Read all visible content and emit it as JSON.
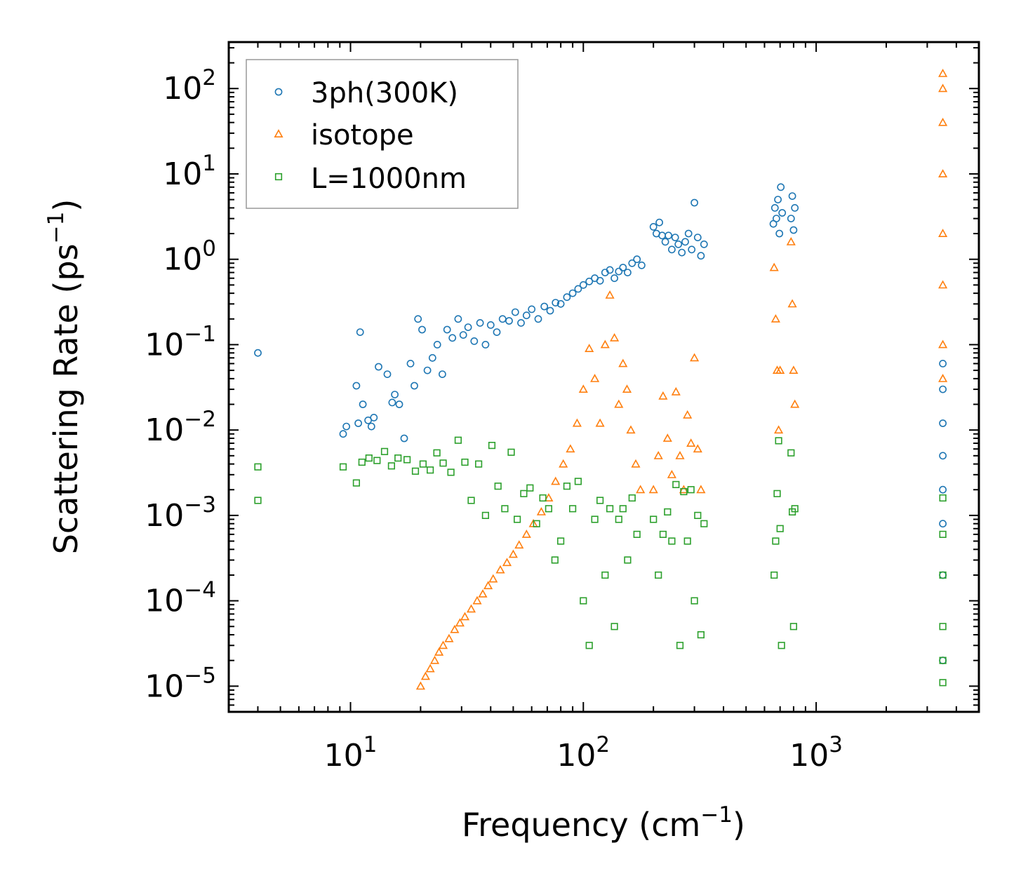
{
  "chart_data": {
    "type": "scatter",
    "title": "",
    "xlabel": "Frequency (cm",
    "xlabel_sup": "−1",
    "xlabel_suffix": ")",
    "ylabel": "Scattering Rate (ps",
    "ylabel_sup": "−1",
    "ylabel_suffix": ")",
    "xscale": "log",
    "yscale": "log",
    "xlim": [
      3.0,
      5000
    ],
    "ylim": [
      5e-06,
      350
    ],
    "grid": false,
    "legend_position": "top-left",
    "x_ticks": [
      {
        "value": 10,
        "base": "10",
        "exp": "1"
      },
      {
        "value": 100,
        "base": "10",
        "exp": "2"
      },
      {
        "value": 1000,
        "base": "10",
        "exp": "3"
      }
    ],
    "y_ticks": [
      {
        "value": 1e-05,
        "base": "10",
        "exp": "−5"
      },
      {
        "value": 0.0001,
        "base": "10",
        "exp": "−4"
      },
      {
        "value": 0.001,
        "base": "10",
        "exp": "−3"
      },
      {
        "value": 0.01,
        "base": "10",
        "exp": "−2"
      },
      {
        "value": 0.1,
        "base": "10",
        "exp": "−1"
      },
      {
        "value": 1,
        "base": "10",
        "exp": "0"
      },
      {
        "value": 10,
        "base": "10",
        "exp": "1"
      },
      {
        "value": 100,
        "base": "10",
        "exp": "2"
      }
    ],
    "series": [
      {
        "name": "3ph(300K)",
        "marker": "circle",
        "color": "#1f77b4",
        "x": [
          4.0,
          9.3,
          9.6,
          10.6,
          10.8,
          11.0,
          11.3,
          11.9,
          12.3,
          12.6,
          13.2,
          14.4,
          15.1,
          15.5,
          16.2,
          17.0,
          18.1,
          18.8,
          19.5,
          20.3,
          21.4,
          22.5,
          23.6,
          24.8,
          26.0,
          27.4,
          29.0,
          30.5,
          32.0,
          34.0,
          36.0,
          38.0,
          40.0,
          42.5,
          45.0,
          48.0,
          51.0,
          54.0,
          57.0,
          60.0,
          64.0,
          68.0,
          72.0,
          76.0,
          80.0,
          85.0,
          90.0,
          95.0,
          100,
          106,
          112,
          118,
          124,
          130,
          136,
          142,
          148,
          155,
          162,
          170,
          178,
          200,
          206,
          212,
          218,
          225,
          232,
          240,
          248,
          256,
          265,
          274,
          283,
          292,
          300,
          310,
          320,
          330,
          655,
          665,
          675,
          685,
          695,
          705,
          715,
          780,
          790,
          800,
          810,
          3500,
          3500,
          3500,
          3500,
          3500,
          3500,
          3500,
          3500
        ],
        "y": [
          0.08,
          0.009,
          0.011,
          0.033,
          0.012,
          0.14,
          0.02,
          0.013,
          0.011,
          0.014,
          0.055,
          0.045,
          0.021,
          0.026,
          0.02,
          0.008,
          0.06,
          0.033,
          0.2,
          0.15,
          0.05,
          0.07,
          0.1,
          0.045,
          0.15,
          0.12,
          0.2,
          0.13,
          0.16,
          0.11,
          0.18,
          0.1,
          0.17,
          0.14,
          0.2,
          0.19,
          0.24,
          0.18,
          0.22,
          0.26,
          0.2,
          0.28,
          0.25,
          0.31,
          0.3,
          0.36,
          0.4,
          0.45,
          0.5,
          0.55,
          0.6,
          0.56,
          0.7,
          0.75,
          0.6,
          0.72,
          0.8,
          0.7,
          0.9,
          1.0,
          0.85,
          2.4,
          2.0,
          2.7,
          1.9,
          1.6,
          1.9,
          1.3,
          1.8,
          1.5,
          1.2,
          1.6,
          2.0,
          1.3,
          4.6,
          1.8,
          1.1,
          1.5,
          2.6,
          4.0,
          3.0,
          5.0,
          2.0,
          7.0,
          3.5,
          3.0,
          5.5,
          2.2,
          4.0,
          0.06,
          0.03,
          0.012,
          0.005,
          0.002,
          0.0008,
          0.0002,
          2e-05
        ]
      },
      {
        "name": "isotope",
        "marker": "triangle",
        "color": "#ff7f0e",
        "x": [
          20.0,
          21.0,
          22.0,
          23.0,
          24.0,
          25.0,
          26.5,
          28.0,
          29.5,
          31.0,
          33.0,
          35.0,
          37.0,
          39.0,
          41.0,
          44.0,
          47.0,
          50.0,
          53.0,
          57.0,
          61.0,
          66.0,
          71.0,
          76.0,
          82.0,
          88.0,
          94.0,
          100,
          106,
          112,
          118,
          124,
          130,
          136,
          142,
          148,
          154,
          160,
          168,
          176,
          200,
          210,
          220,
          230,
          240,
          250,
          260,
          270,
          280,
          290,
          300,
          310,
          320,
          660,
          670,
          680,
          690,
          700,
          780,
          790,
          800,
          810,
          3500,
          3500,
          3500,
          3500,
          3500,
          3500,
          3500,
          3500
        ],
        "y": [
          1e-05,
          1.3e-05,
          1.6e-05,
          2e-05,
          2.5e-05,
          3e-05,
          3.6e-05,
          4.6e-05,
          5.5e-05,
          6.5e-05,
          8e-05,
          0.0001,
          0.00012,
          0.00015,
          0.00018,
          0.00023,
          0.00028,
          0.00035,
          0.00045,
          0.0006,
          0.0008,
          0.0011,
          0.0016,
          0.0025,
          0.004,
          0.006,
          0.012,
          0.03,
          0.09,
          0.04,
          0.012,
          0.1,
          0.38,
          0.12,
          0.02,
          0.06,
          0.03,
          0.01,
          0.004,
          0.002,
          0.002,
          0.005,
          0.025,
          0.008,
          0.003,
          0.028,
          0.005,
          0.002,
          0.015,
          0.007,
          0.07,
          0.006,
          0.002,
          0.8,
          0.2,
          0.05,
          0.01,
          0.05,
          1.6,
          0.3,
          0.05,
          0.02,
          150,
          100,
          40,
          10,
          2.0,
          0.5,
          0.1,
          0.04
        ]
      },
      {
        "name": "L=1000nm",
        "marker": "square",
        "color": "#2ca02c",
        "x": [
          4.0,
          4.0,
          9.3,
          10.6,
          11.2,
          12.0,
          13.0,
          14.0,
          15.0,
          16.0,
          17.5,
          19.0,
          20.5,
          22.0,
          23.5,
          25.0,
          27.0,
          29.0,
          31.0,
          33.0,
          35.5,
          38.0,
          40.5,
          43.0,
          46.0,
          49.0,
          52.0,
          55.5,
          59.0,
          63.0,
          67.0,
          71.0,
          75.5,
          80.0,
          85.0,
          90.0,
          95.0,
          100,
          106,
          112,
          118,
          124,
          130,
          136,
          142,
          148,
          155,
          162,
          170,
          200,
          210,
          220,
          230,
          240,
          250,
          260,
          270,
          280,
          290,
          300,
          310,
          320,
          330,
          660,
          670,
          680,
          690,
          700,
          710,
          780,
          790,
          800,
          810,
          3500,
          3500,
          3500,
          3500,
          3500,
          3500
        ],
        "y": [
          0.0015,
          0.0037,
          0.0037,
          0.0024,
          0.0042,
          0.0047,
          0.0044,
          0.0056,
          0.0038,
          0.0047,
          0.0045,
          0.0033,
          0.004,
          0.0034,
          0.0054,
          0.0041,
          0.0032,
          0.0076,
          0.0042,
          0.0015,
          0.004,
          0.001,
          0.0066,
          0.0022,
          0.0012,
          0.0055,
          0.0009,
          0.0018,
          0.0021,
          0.0008,
          0.0016,
          0.0012,
          0.0003,
          0.0005,
          0.0022,
          0.0012,
          0.0025,
          0.0001,
          3e-05,
          0.0009,
          0.0015,
          0.0002,
          0.0012,
          5e-05,
          0.0009,
          0.0012,
          0.0003,
          0.0016,
          0.0006,
          0.0009,
          0.0002,
          0.0006,
          0.0011,
          0.0005,
          0.0023,
          3e-05,
          0.0019,
          0.0005,
          0.002,
          0.0001,
          0.001,
          4e-05,
          0.0008,
          0.0002,
          0.0005,
          0.0018,
          0.0075,
          0.0007,
          3e-05,
          0.0054,
          0.0011,
          5e-05,
          0.0012,
          0.0016,
          0.0006,
          0.0002,
          5e-05,
          2e-05,
          1.1e-05
        ]
      }
    ]
  }
}
